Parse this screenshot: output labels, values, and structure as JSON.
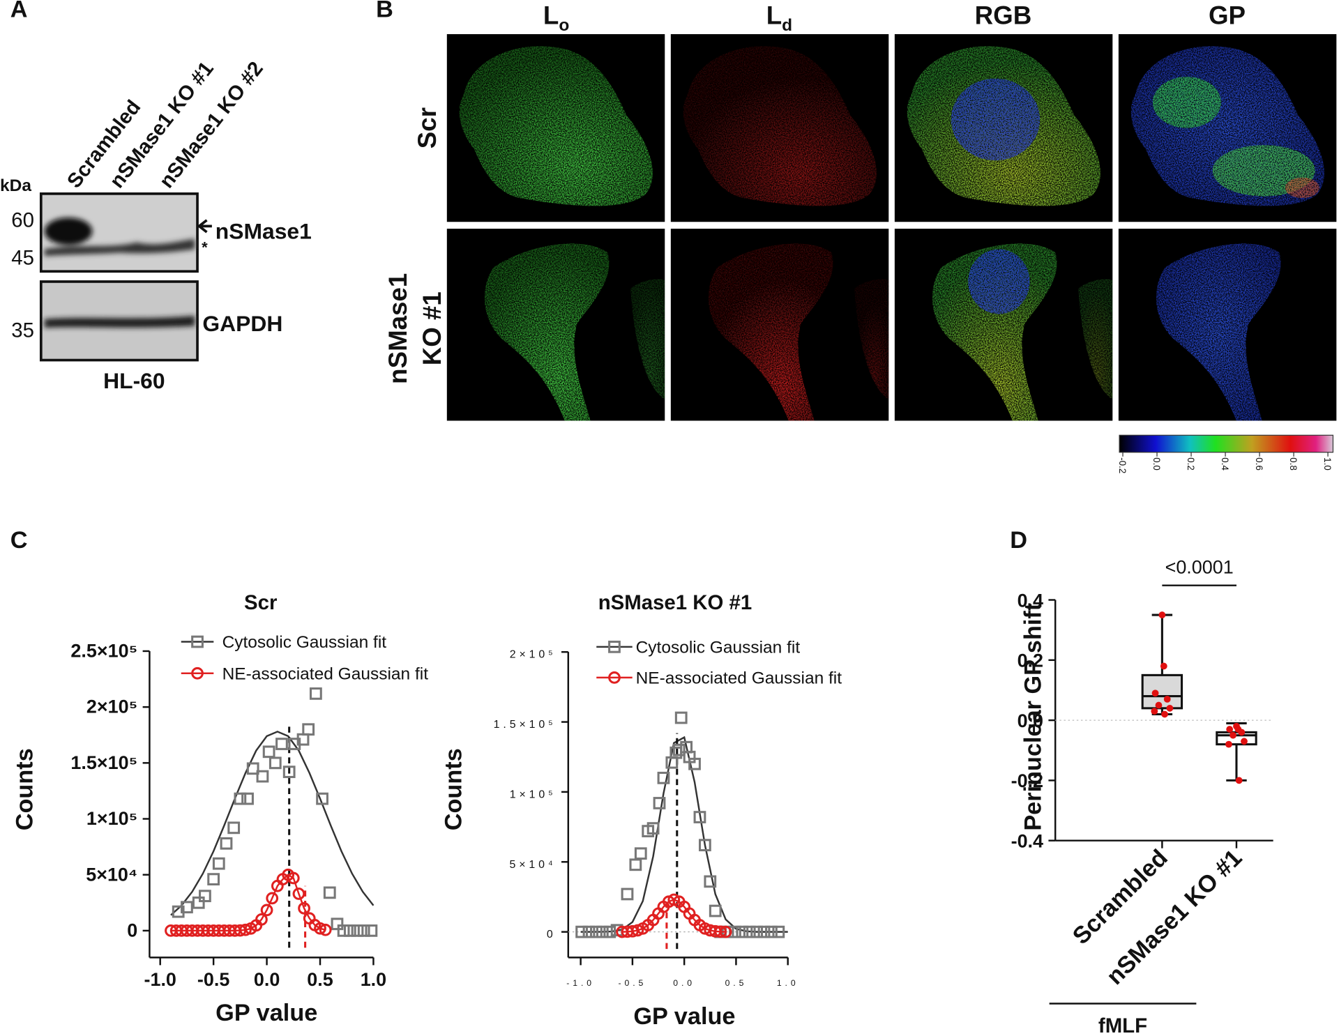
{
  "panel_labels": [
    "A",
    "B",
    "C",
    "D"
  ],
  "panel_a": {
    "lanes": [
      "Scrambled",
      "nSMase1 KO #1",
      "nSMase1 KO #2"
    ],
    "unit": "kDa",
    "markers": [
      60,
      45,
      35
    ],
    "target": "nSMase1",
    "nonspecific": "*",
    "loading_control": "GAPDH",
    "cell_line": "HL-60"
  },
  "panel_b": {
    "columns": [
      {
        "main": "L",
        "sub": "o"
      },
      {
        "main": "L",
        "sub": "d"
      },
      "RGB",
      "GP"
    ],
    "rows": [
      [
        "Scr"
      ],
      [
        "nSMase1",
        "KO #1"
      ]
    ],
    "colorbar": {
      "lim": [
        -0.2,
        1.0
      ],
      "ticks": [
        -0.2,
        {
          "value": 0,
          "label": "0.0"
        },
        0.2,
        0.4,
        0.6,
        0.8,
        {
          "value": 1,
          "label": "1.0"
        }
      ]
    }
  },
  "chart_data": [
    {
      "type": "scatter",
      "title": "Scr",
      "xlabel": "GP value",
      "ylabel": "Counts",
      "xlim": [
        -1.1,
        1.0
      ],
      "ylim": [
        -24000,
        250000
      ],
      "xticks": [
        {
          "value": -1,
          "label": "-1.0"
        },
        -0.5,
        {
          "value": 0,
          "label": "0.0"
        },
        0.5,
        {
          "value": 1,
          "label": "1.0"
        }
      ],
      "yticks": [
        0,
        {
          "value": 50000,
          "label": "5×10⁴"
        },
        {
          "value": 100000,
          "label": "1×10⁵"
        },
        {
          "value": 150000,
          "label": "1.5×10⁵"
        },
        {
          "value": 200000,
          "label": "2×10⁵"
        },
        {
          "value": 250000,
          "label": "2.5×10⁵"
        }
      ],
      "zero_line": false,
      "series": [
        {
          "name": "Cytosolic Gaussian fit",
          "color": "#777777",
          "line_color": "#333333",
          "marker": "square",
          "connect": false,
          "x": [
            -0.83,
            -0.75,
            -0.64,
            -0.58,
            -0.5,
            -0.45,
            -0.38,
            -0.31,
            -0.25,
            -0.18,
            -0.13,
            -0.04,
            0.02,
            0.08,
            0.14,
            0.21,
            0.26,
            0.34,
            0.39,
            0.46,
            0.52,
            0.59,
            0.66,
            0.72,
            0.78,
            0.85,
            0.91,
            0.98
          ],
          "values": [
            17000,
            21000,
            25000,
            31000,
            46000,
            60000,
            78000,
            92000,
            118000,
            118000,
            145000,
            138000,
            160000,
            150000,
            167000,
            142000,
            167000,
            171000,
            180000,
            212000,
            118000,
            34000,
            6000,
            0,
            0,
            0,
            0,
            0
          ],
          "fit": {
            "x": [
              -0.9,
              -0.8,
              -0.7,
              -0.6,
              -0.5,
              -0.4,
              -0.3,
              -0.2,
              -0.1,
              0,
              0.1,
              0.2,
              0.3,
              0.4,
              0.5,
              0.6,
              0.7,
              0.8,
              0.9,
              1.0
            ],
            "values": [
              13900,
              22500,
              34800,
              51000,
              71000,
              94000,
              118000,
              141000,
              161000,
              174000,
              178000,
              174000,
              161000,
              141000,
              118000,
              94000,
              71000,
              51000,
              34800,
              22500
            ]
          },
          "mean_line": {
            "x": 0.21,
            "top": 183000
          }
        },
        {
          "name": "NE-associated Gaussian fit",
          "color": "#e02020",
          "line_color": "#e02020",
          "marker": "circle",
          "connect": true,
          "x": [
            -0.9,
            -0.85,
            -0.8,
            -0.75,
            -0.7,
            -0.65,
            -0.6,
            -0.55,
            -0.5,
            -0.45,
            -0.4,
            -0.35,
            -0.3,
            -0.25,
            -0.2,
            -0.15,
            -0.1,
            -0.05,
            0,
            0.05,
            0.1,
            0.15,
            0.2,
            0.25,
            0.3,
            0.35,
            0.4,
            0.45,
            0.5,
            0.55
          ],
          "values": [
            0,
            0,
            0,
            0,
            0,
            0,
            0,
            0,
            0,
            0,
            0,
            0,
            0,
            200,
            700,
            1900,
            4700,
            10000,
            18400,
            29000,
            40000,
            46000,
            50000,
            47000,
            33000,
            20000,
            11000,
            5000,
            2000,
            700
          ],
          "mean_line": {
            "x": 0.36,
            "top": 40000
          }
        }
      ]
    },
    {
      "type": "scatter",
      "title": "nSMase1 KO #1",
      "xlabel": "GP value",
      "ylabel": "Counts",
      "xlim": [
        -1.12,
        1.0
      ],
      "ylim": [
        -18300,
        200000
      ],
      "xticks": [
        {
          "value": -1,
          "label": "-1.0"
        },
        -0.5,
        {
          "value": 0,
          "label": "0.0"
        },
        0.5,
        {
          "value": 1,
          "label": "1.0"
        }
      ],
      "yticks": [
        0,
        {
          "value": 50000,
          "label": "5×10⁴"
        },
        {
          "value": 100000,
          "label": "1×10⁵"
        },
        {
          "value": 150000,
          "label": "1.5×10⁵"
        },
        {
          "value": 200000,
          "label": "2×10⁵"
        }
      ],
      "zero_line": true,
      "series": [
        {
          "name": "Cytosolic Gaussian fit",
          "color": "#777777",
          "line_color": "#333333",
          "marker": "square",
          "connect": false,
          "x": [
            -0.99,
            -0.92,
            -0.85,
            -0.79,
            -0.72,
            -0.65,
            -0.55,
            -0.47,
            -0.42,
            -0.35,
            -0.3,
            -0.24,
            -0.2,
            -0.12,
            -0.08,
            -0.05,
            -0.03,
            0.02,
            0.05,
            0.1,
            0.15,
            0.2,
            0.25,
            0.3,
            0.35,
            0.42,
            0.49,
            0.56,
            0.63,
            0.7,
            0.77,
            0.84,
            0.91
          ],
          "values": [
            0,
            0,
            0,
            0,
            0,
            1200,
            27000,
            48000,
            56000,
            72000,
            74000,
            92000,
            110000,
            121000,
            128000,
            130000,
            153000,
            132000,
            125000,
            120000,
            82000,
            62000,
            36000,
            15000,
            0,
            0,
            0,
            0,
            0,
            0,
            0,
            0,
            0
          ],
          "fit": {
            "x": [
              -1.0,
              -0.9,
              -0.8,
              -0.7,
              -0.6,
              -0.5,
              -0.4,
              -0.3,
              -0.2,
              -0.1,
              0,
              0.1,
              0.2,
              0.3,
              0.4,
              0.5,
              0.6,
              0.7,
              0.8,
              0.9,
              1.0
            ],
            "values": [
              0,
              0,
              40,
              280,
              1600,
              7000,
              22000,
              54000,
              99000,
              135000,
              139000,
              107000,
              62000,
              27000,
              8900,
              2200,
              410,
              0,
              0,
              0,
              0
            ]
          },
          "mean_line": {
            "x": -0.07,
            "top": 142000
          }
        },
        {
          "name": "NE-associated Gaussian fit",
          "color": "#e02020",
          "line_color": "#e02020",
          "marker": "circle",
          "connect": true,
          "x": [
            -0.6,
            -0.55,
            -0.5,
            -0.45,
            -0.4,
            -0.35,
            -0.3,
            -0.25,
            -0.2,
            -0.15,
            -0.1,
            -0.05,
            0,
            0.05,
            0.1,
            0.15,
            0.2,
            0.25,
            0.3,
            0.35,
            0.4
          ],
          "values": [
            0,
            150,
            420,
            1100,
            2400,
            4800,
            8500,
            13100,
            17900,
            21600,
            23000,
            21600,
            17900,
            13100,
            8500,
            4800,
            2400,
            1100,
            420,
            150,
            0
          ],
          "mean_line": {
            "x": -0.17,
            "top": 20000
          }
        }
      ]
    },
    {
      "type": "box",
      "ylabel": "Perinuclear GP shift",
      "ylim": [
        -0.4,
        0.4
      ],
      "yticks": [
        0.4,
        0.2,
        {
          "value": 0,
          "label": "0.0"
        },
        -0.2,
        -0.4
      ],
      "categories": [
        "Scrambled",
        "nSMase1 KO #1"
      ],
      "box_colors": [
        "#d9d9d9",
        "#ffffff"
      ],
      "point_color": "#e01010",
      "zero_line": true,
      "annotation": "<0.0001",
      "group_label": "fMLF",
      "boxes": [
        {
          "min": 0.02,
          "q1": 0.04,
          "median": 0.08,
          "q3": 0.15,
          "max": 0.35,
          "points": [
            0.35,
            0.18,
            0.09,
            0.07,
            0.05,
            0.04,
            0.03,
            0.02
          ]
        },
        {
          "min": -0.2,
          "q1": -0.08,
          "median": -0.05,
          "q3": -0.04,
          "max": -0.01,
          "points": [
            -0.02,
            -0.03,
            -0.03,
            -0.04,
            -0.05,
            -0.07,
            -0.08,
            -0.2
          ]
        }
      ]
    }
  ]
}
